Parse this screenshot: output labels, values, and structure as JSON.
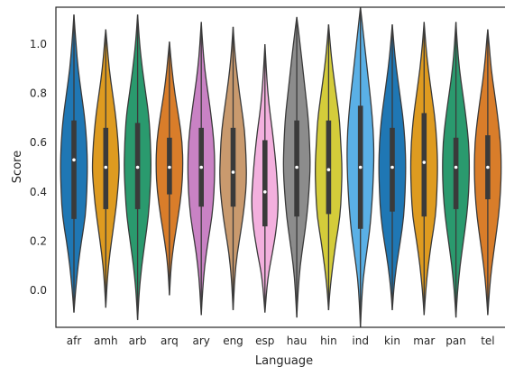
{
  "chart_data": {
    "type": "violin",
    "xlabel": "Language",
    "ylabel": "Score",
    "ylim": [
      -0.15,
      1.15
    ],
    "yticks": [
      "0.0",
      "0.2",
      "0.4",
      "0.6",
      "0.8",
      "1.0"
    ],
    "grid": false,
    "categories": [
      "afr",
      "amh",
      "arb",
      "arq",
      "ary",
      "eng",
      "esp",
      "hau",
      "hin",
      "ind",
      "kin",
      "mar",
      "pan",
      "tel"
    ],
    "violins": [
      {
        "category": "afr",
        "color": "#1f77b4",
        "min": -0.09,
        "max": 1.12,
        "q1": 0.29,
        "median": 0.53,
        "q3": 0.69,
        "profile": [
          [
            -0.09,
            0.0
          ],
          [
            0.0,
            0.12
          ],
          [
            0.1,
            0.3
          ],
          [
            0.2,
            0.55
          ],
          [
            0.3,
            0.85
          ],
          [
            0.4,
            0.95
          ],
          [
            0.5,
            1.0
          ],
          [
            0.6,
            0.95
          ],
          [
            0.7,
            0.8
          ],
          [
            0.8,
            0.55
          ],
          [
            0.9,
            0.3
          ],
          [
            1.0,
            0.15
          ],
          [
            1.12,
            0.0
          ]
        ]
      },
      {
        "category": "amh",
        "color": "#de9b20",
        "min": -0.07,
        "max": 1.06,
        "q1": 0.33,
        "median": 0.5,
        "q3": 0.66,
        "profile": [
          [
            -0.07,
            0.0
          ],
          [
            0.05,
            0.12
          ],
          [
            0.15,
            0.3
          ],
          [
            0.25,
            0.55
          ],
          [
            0.35,
            0.8
          ],
          [
            0.45,
            0.95
          ],
          [
            0.5,
            1.0
          ],
          [
            0.6,
            0.92
          ],
          [
            0.7,
            0.75
          ],
          [
            0.8,
            0.5
          ],
          [
            0.9,
            0.25
          ],
          [
            1.0,
            0.1
          ],
          [
            1.06,
            0.0
          ]
        ]
      },
      {
        "category": "arb",
        "color": "#2a9a6e",
        "min": -0.12,
        "max": 1.12,
        "q1": 0.33,
        "median": 0.5,
        "q3": 0.68,
        "profile": [
          [
            -0.12,
            0.0
          ],
          [
            0.0,
            0.12
          ],
          [
            0.1,
            0.3
          ],
          [
            0.2,
            0.55
          ],
          [
            0.3,
            0.8
          ],
          [
            0.4,
            0.92
          ],
          [
            0.5,
            1.0
          ],
          [
            0.6,
            0.95
          ],
          [
            0.7,
            0.85
          ],
          [
            0.8,
            0.6
          ],
          [
            0.9,
            0.35
          ],
          [
            1.0,
            0.15
          ],
          [
            1.12,
            0.0
          ]
        ]
      },
      {
        "category": "arq",
        "color": "#d97d2a",
        "min": -0.02,
        "max": 1.01,
        "q1": 0.39,
        "median": 0.5,
        "q3": 0.62,
        "profile": [
          [
            -0.02,
            0.0
          ],
          [
            0.1,
            0.12
          ],
          [
            0.2,
            0.35
          ],
          [
            0.3,
            0.65
          ],
          [
            0.4,
            0.9
          ],
          [
            0.5,
            1.0
          ],
          [
            0.6,
            0.95
          ],
          [
            0.7,
            0.7
          ],
          [
            0.8,
            0.4
          ],
          [
            0.9,
            0.18
          ],
          [
            1.01,
            0.0
          ]
        ]
      },
      {
        "category": "ary",
        "color": "#c982c4",
        "min": -0.1,
        "max": 1.09,
        "q1": 0.34,
        "median": 0.5,
        "q3": 0.66,
        "profile": [
          [
            -0.1,
            0.0
          ],
          [
            0.0,
            0.1
          ],
          [
            0.1,
            0.25
          ],
          [
            0.2,
            0.5
          ],
          [
            0.3,
            0.8
          ],
          [
            0.4,
            0.95
          ],
          [
            0.5,
            1.0
          ],
          [
            0.6,
            0.95
          ],
          [
            0.7,
            0.75
          ],
          [
            0.8,
            0.5
          ],
          [
            0.9,
            0.25
          ],
          [
            1.0,
            0.1
          ],
          [
            1.09,
            0.0
          ]
        ]
      },
      {
        "category": "eng",
        "color": "#c99a6e",
        "min": -0.08,
        "max": 1.07,
        "q1": 0.34,
        "median": 0.48,
        "q3": 0.66,
        "profile": [
          [
            -0.08,
            0.0
          ],
          [
            0.05,
            0.12
          ],
          [
            0.15,
            0.3
          ],
          [
            0.25,
            0.6
          ],
          [
            0.35,
            0.85
          ],
          [
            0.45,
            1.0
          ],
          [
            0.55,
            0.95
          ],
          [
            0.65,
            0.85
          ],
          [
            0.75,
            0.6
          ],
          [
            0.85,
            0.35
          ],
          [
            0.95,
            0.15
          ],
          [
            1.07,
            0.0
          ]
        ]
      },
      {
        "category": "esp",
        "color": "#f3b0de",
        "min": -0.09,
        "max": 1.0,
        "q1": 0.26,
        "median": 0.4,
        "q3": 0.61,
        "profile": [
          [
            -0.09,
            0.0
          ],
          [
            0.05,
            0.2
          ],
          [
            0.15,
            0.55
          ],
          [
            0.25,
            0.85
          ],
          [
            0.35,
            1.0
          ],
          [
            0.45,
            0.9
          ],
          [
            0.55,
            0.75
          ],
          [
            0.65,
            0.55
          ],
          [
            0.75,
            0.3
          ],
          [
            0.85,
            0.15
          ],
          [
            1.0,
            0.0
          ]
        ]
      },
      {
        "category": "hau",
        "color": "#8c8c8c",
        "min": -0.11,
        "max": 1.11,
        "q1": 0.3,
        "median": 0.5,
        "q3": 0.69,
        "profile": [
          [
            -0.11,
            0.0
          ],
          [
            0.0,
            0.1
          ],
          [
            0.1,
            0.25
          ],
          [
            0.2,
            0.5
          ],
          [
            0.3,
            0.75
          ],
          [
            0.4,
            0.9
          ],
          [
            0.5,
            1.0
          ],
          [
            0.6,
            0.95
          ],
          [
            0.7,
            0.85
          ],
          [
            0.8,
            0.65
          ],
          [
            0.9,
            0.45
          ],
          [
            1.0,
            0.25
          ],
          [
            1.11,
            0.0
          ]
        ]
      },
      {
        "category": "hin",
        "color": "#d4cc3a",
        "min": -0.08,
        "max": 1.08,
        "q1": 0.31,
        "median": 0.49,
        "q3": 0.69,
        "profile": [
          [
            -0.08,
            0.0
          ],
          [
            0.0,
            0.1
          ],
          [
            0.1,
            0.3
          ],
          [
            0.2,
            0.55
          ],
          [
            0.3,
            0.85
          ],
          [
            0.4,
            0.95
          ],
          [
            0.5,
            1.0
          ],
          [
            0.6,
            0.9
          ],
          [
            0.7,
            0.8
          ],
          [
            0.8,
            0.55
          ],
          [
            0.9,
            0.3
          ],
          [
            1.0,
            0.12
          ],
          [
            1.08,
            0.0
          ]
        ]
      },
      {
        "category": "ind",
        "color": "#5ab0e6",
        "min": -0.15,
        "max": 1.15,
        "q1": 0.25,
        "median": 0.5,
        "q3": 0.75,
        "profile": [
          [
            -0.15,
            0.0
          ],
          [
            -0.05,
            0.08
          ],
          [
            0.05,
            0.2
          ],
          [
            0.15,
            0.45
          ],
          [
            0.25,
            0.7
          ],
          [
            0.35,
            0.85
          ],
          [
            0.45,
            0.95
          ],
          [
            0.55,
            1.0
          ],
          [
            0.65,
            0.95
          ],
          [
            0.75,
            0.8
          ],
          [
            0.85,
            0.6
          ],
          [
            0.95,
            0.4
          ],
          [
            1.05,
            0.2
          ],
          [
            1.15,
            0.0
          ]
        ]
      },
      {
        "category": "kin",
        "color": "#1f77b4",
        "min": -0.08,
        "max": 1.08,
        "q1": 0.32,
        "median": 0.5,
        "q3": 0.66,
        "profile": [
          [
            -0.08,
            0.0
          ],
          [
            0.0,
            0.1
          ],
          [
            0.1,
            0.3
          ],
          [
            0.2,
            0.6
          ],
          [
            0.3,
            0.85
          ],
          [
            0.4,
            0.95
          ],
          [
            0.5,
            1.0
          ],
          [
            0.6,
            0.95
          ],
          [
            0.7,
            0.8
          ],
          [
            0.8,
            0.55
          ],
          [
            0.9,
            0.3
          ],
          [
            1.0,
            0.12
          ],
          [
            1.08,
            0.0
          ]
        ]
      },
      {
        "category": "mar",
        "color": "#de9b20",
        "min": -0.1,
        "max": 1.09,
        "q1": 0.3,
        "median": 0.52,
        "q3": 0.72,
        "profile": [
          [
            -0.1,
            0.0
          ],
          [
            0.0,
            0.12
          ],
          [
            0.1,
            0.3
          ],
          [
            0.2,
            0.55
          ],
          [
            0.3,
            0.85
          ],
          [
            0.4,
            0.95
          ],
          [
            0.5,
            1.0
          ],
          [
            0.6,
            0.95
          ],
          [
            0.7,
            0.8
          ],
          [
            0.8,
            0.55
          ],
          [
            0.9,
            0.3
          ],
          [
            1.0,
            0.12
          ],
          [
            1.09,
            0.0
          ]
        ]
      },
      {
        "category": "pan",
        "color": "#2a9a6e",
        "min": -0.11,
        "max": 1.09,
        "q1": 0.33,
        "median": 0.5,
        "q3": 0.62,
        "profile": [
          [
            -0.11,
            0.0
          ],
          [
            0.0,
            0.12
          ],
          [
            0.1,
            0.3
          ],
          [
            0.2,
            0.55
          ],
          [
            0.3,
            0.8
          ],
          [
            0.4,
            0.95
          ],
          [
            0.5,
            1.0
          ],
          [
            0.6,
            0.95
          ],
          [
            0.7,
            0.75
          ],
          [
            0.8,
            0.5
          ],
          [
            0.9,
            0.25
          ],
          [
            1.0,
            0.1
          ],
          [
            1.09,
            0.0
          ]
        ]
      },
      {
        "category": "tel",
        "color": "#d97d2a",
        "min": -0.1,
        "max": 1.06,
        "q1": 0.37,
        "median": 0.5,
        "q3": 0.63,
        "profile": [
          [
            -0.1,
            0.0
          ],
          [
            0.0,
            0.12
          ],
          [
            0.1,
            0.3
          ],
          [
            0.2,
            0.55
          ],
          [
            0.3,
            0.8
          ],
          [
            0.4,
            0.95
          ],
          [
            0.5,
            1.0
          ],
          [
            0.6,
            0.95
          ],
          [
            0.7,
            0.75
          ],
          [
            0.8,
            0.5
          ],
          [
            0.9,
            0.25
          ],
          [
            1.0,
            0.1
          ],
          [
            1.06,
            0.0
          ]
        ]
      }
    ]
  }
}
